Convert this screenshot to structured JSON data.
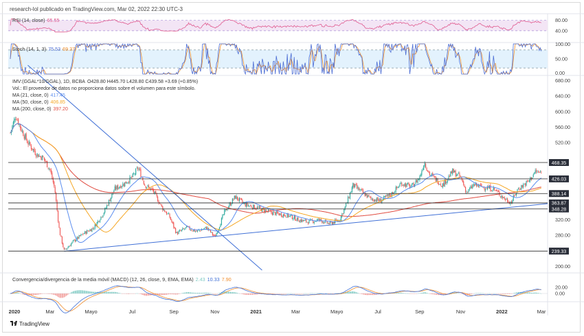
{
  "header": "research-lol publicado en TradingView.com, Mar 02, 2022 22:30 UTC-3",
  "brand": "TradingView",
  "colors": {
    "up": "#26a69a",
    "down": "#ef5350",
    "rsi": "#e05a8f",
    "stoch_k": "#4a6cd4",
    "stoch_d": "#ef8c26",
    "ma21": "#5b8def",
    "ma50": "#f5a623",
    "ma200": "#e04a3f",
    "macd": "#3f6fd6",
    "signal": "#f08c2b",
    "trendline": "#3f6fd6"
  },
  "rsi": {
    "title": "RSI (14, close)",
    "value": "65.55",
    "levels": [
      "80.00",
      "40.00"
    ]
  },
  "stoch": {
    "title": "Stoch (14, 1, 3)",
    "k": "75.53",
    "d": "69.37",
    "levels": [
      "100.00",
      "50.00",
      "0.00"
    ]
  },
  "main": {
    "title": "IMV:(GGAL*10/GGAL), 1D, BCBA",
    "ohlc": "O428.80  H445.70  L428.80  C439.58  +3.69 (+0.85%)",
    "volume_note": "Vol.: El proveedor de datos no proporciona datos sobre el volumen para este símbolo.",
    "ma21": {
      "label": "MA (21, close, 0)",
      "value": "417.45"
    },
    "ma50": {
      "label": "MA (50, close, 0)",
      "value": "406.85"
    },
    "ma200": {
      "label": "MA (200, close, 0)",
      "value": "397.20"
    }
  },
  "macd": {
    "title": "Convergencia/divergencia de la media móvil (MACD) (12, 26, close, 9, EMA, EMA)",
    "hist": "2.43",
    "macd": "10.33",
    "signal": "7.90",
    "ticks": [
      "20.00",
      "0.00"
    ]
  },
  "chart_data": {
    "type": "candlestick",
    "x_axis_labels": [
      "2020",
      "Mar",
      "Mayo",
      "Jul",
      "Sep",
      "Nov",
      "2021",
      "Mar",
      "Mayo",
      "Jul",
      "Sep",
      "Nov",
      "2022",
      "Mar"
    ],
    "y_ticks": [
      "680.00",
      "640.00",
      "600.00",
      "560.00",
      "520.00",
      "480.00",
      "440.00",
      "400.00",
      "360.00",
      "320.00",
      "280.00",
      "240.00",
      "200.00"
    ],
    "ylim": [
      190,
      690
    ],
    "horizontal_levels": [
      {
        "label": "468.35",
        "value": 468.35
      },
      {
        "label": "426.03",
        "value": 426.03
      },
      {
        "label": "388.14",
        "value": 388.14
      },
      {
        "label": "363.87",
        "value": 363.87
      },
      {
        "label": "348.28",
        "value": 348.28
      },
      {
        "label": "239.33",
        "value": 239.33
      }
    ],
    "close_path": [
      [
        "2020-01-02",
        545
      ],
      [
        "2020-01-10",
        590
      ],
      [
        "2020-01-18",
        555
      ],
      [
        "2020-01-28",
        520
      ],
      [
        "2020-02-10",
        490
      ],
      [
        "2020-02-20",
        480
      ],
      [
        "2020-03-01",
        450
      ],
      [
        "2020-03-08",
        400
      ],
      [
        "2020-03-15",
        290
      ],
      [
        "2020-03-22",
        240
      ],
      [
        "2020-04-05",
        265
      ],
      [
        "2020-04-20",
        285
      ],
      [
        "2020-05-05",
        300
      ],
      [
        "2020-05-20",
        340
      ],
      [
        "2020-06-05",
        400
      ],
      [
        "2020-06-20",
        415
      ],
      [
        "2020-07-01",
        430
      ],
      [
        "2020-07-10",
        455
      ],
      [
        "2020-07-20",
        410
      ],
      [
        "2020-08-01",
        395
      ],
      [
        "2020-08-15",
        350
      ],
      [
        "2020-08-25",
        330
      ],
      [
        "2020-09-05",
        285
      ],
      [
        "2020-09-20",
        300
      ],
      [
        "2020-10-05",
        290
      ],
      [
        "2020-10-20",
        300
      ],
      [
        "2020-11-01",
        275
      ],
      [
        "2020-11-15",
        340
      ],
      [
        "2020-12-01",
        380
      ],
      [
        "2020-12-15",
        360
      ],
      [
        "2021-01-05",
        350
      ],
      [
        "2021-01-20",
        340
      ],
      [
        "2021-02-05",
        335
      ],
      [
        "2021-02-20",
        330
      ],
      [
        "2021-03-05",
        320
      ],
      [
        "2021-03-20",
        315
      ],
      [
        "2021-04-05",
        320
      ],
      [
        "2021-04-20",
        310
      ],
      [
        "2021-05-05",
        320
      ],
      [
        "2021-05-15",
        360
      ],
      [
        "2021-05-25",
        410
      ],
      [
        "2021-06-05",
        395
      ],
      [
        "2021-06-20",
        375
      ],
      [
        "2021-07-05",
        370
      ],
      [
        "2021-07-20",
        385
      ],
      [
        "2021-08-05",
        415
      ],
      [
        "2021-08-20",
        405
      ],
      [
        "2021-09-01",
        430
      ],
      [
        "2021-09-08",
        470
      ],
      [
        "2021-09-15",
        440
      ],
      [
        "2021-09-25",
        425
      ],
      [
        "2021-10-05",
        410
      ],
      [
        "2021-10-20",
        445
      ],
      [
        "2021-11-01",
        430
      ],
      [
        "2021-11-10",
        390
      ],
      [
        "2021-11-20",
        410
      ],
      [
        "2021-12-05",
        405
      ],
      [
        "2021-12-20",
        400
      ],
      [
        "2022-01-05",
        375
      ],
      [
        "2022-01-15",
        365
      ],
      [
        "2022-01-25",
        400
      ],
      [
        "2022-02-10",
        420
      ],
      [
        "2022-02-20",
        445
      ],
      [
        "2022-03-02",
        439.58
      ]
    ]
  }
}
